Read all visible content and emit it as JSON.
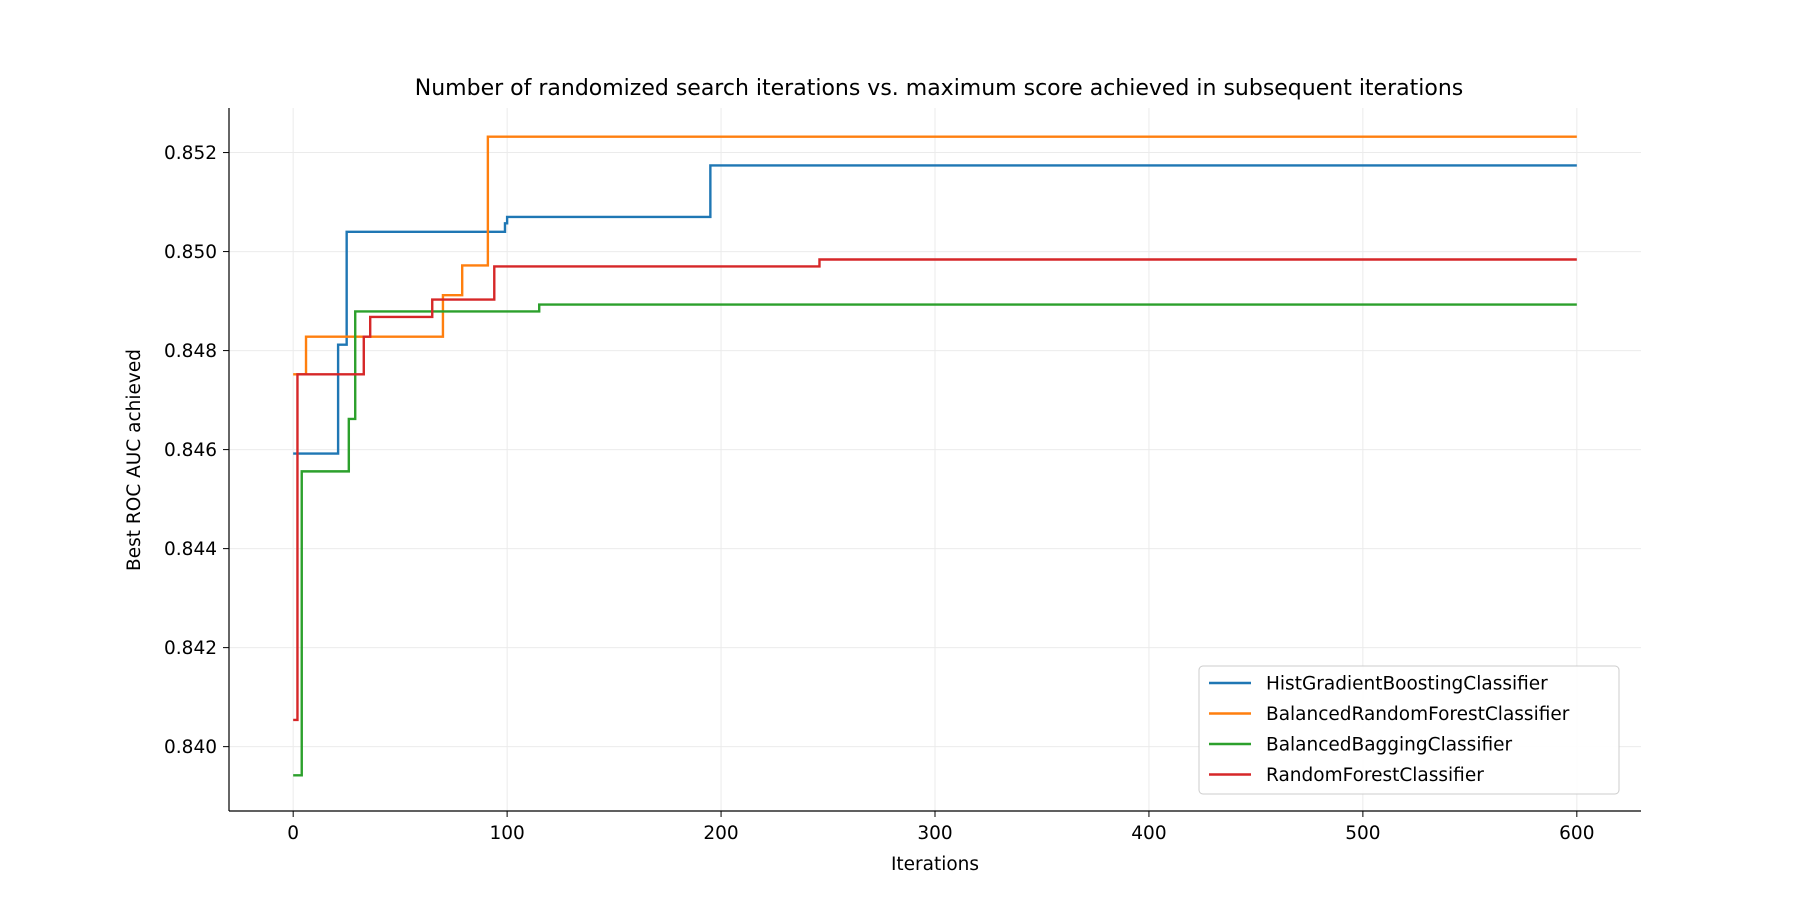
{
  "chart_data": {
    "type": "line",
    "step": "post",
    "title": "Number of randomized search iterations vs. maximum score achieved in subsequent iterations",
    "xlabel": "Iterations",
    "ylabel": "Best ROC AUC achieved",
    "xlim": [
      -30,
      630
    ],
    "ylim": [
      0.8387,
      0.8529
    ],
    "x_ticks": [
      0,
      100,
      200,
      300,
      400,
      500,
      600
    ],
    "x_tick_labels": [
      "0",
      "100",
      "200",
      "300",
      "400",
      "500",
      "600"
    ],
    "y_ticks": [
      0.84,
      0.842,
      0.844,
      0.846,
      0.848,
      0.85,
      0.852
    ],
    "y_tick_labels": [
      "0.840",
      "0.842",
      "0.844",
      "0.846",
      "0.848",
      "0.850",
      "0.852"
    ],
    "grid": true,
    "legend_position": "lower-right",
    "series": [
      {
        "name": "HistGradientBoostingClassifier",
        "color": "#1f77b4",
        "points": [
          [
            0,
            0.84592
          ],
          [
            21,
            0.84812
          ],
          [
            25,
            0.8504
          ],
          [
            99,
            0.85057
          ],
          [
            100,
            0.8507
          ],
          [
            195,
            0.85174
          ],
          [
            600,
            0.85174
          ]
        ]
      },
      {
        "name": "BalancedRandomForestClassifier",
        "color": "#ff7f0e",
        "points": [
          [
            0,
            0.84752
          ],
          [
            6,
            0.84828
          ],
          [
            70,
            0.84912
          ],
          [
            79,
            0.84972
          ],
          [
            91,
            0.85232
          ],
          [
            600,
            0.85232
          ]
        ]
      },
      {
        "name": "BalancedBaggingClassifier",
        "color": "#2ca02c",
        "points": [
          [
            0,
            0.83942
          ],
          [
            4,
            0.84556
          ],
          [
            26,
            0.84662
          ],
          [
            29,
            0.84879
          ],
          [
            115,
            0.84893
          ],
          [
            600,
            0.84893
          ]
        ]
      },
      {
        "name": "RandomForestClassifier",
        "color": "#d62728",
        "points": [
          [
            0,
            0.84054
          ],
          [
            2,
            0.84752
          ],
          [
            33,
            0.84828
          ],
          [
            36,
            0.84868
          ],
          [
            65,
            0.84903
          ],
          [
            94,
            0.8497
          ],
          [
            246,
            0.84984
          ],
          [
            600,
            0.84984
          ]
        ]
      }
    ]
  }
}
